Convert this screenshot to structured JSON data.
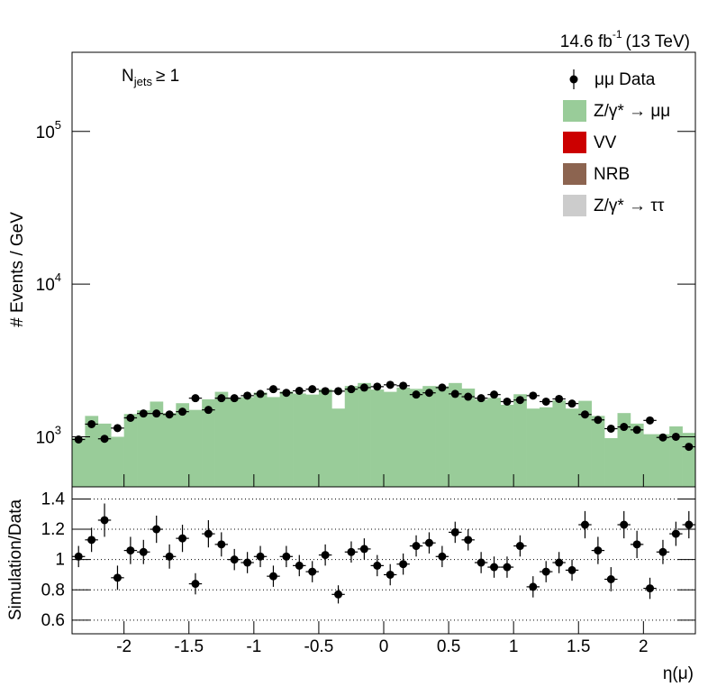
{
  "chart_data": [
    {
      "type": "histogram",
      "y_label": "# Events / GeV",
      "lumi": {
        "text": "14.6 fb",
        "sup": "-1",
        "rest": "(13 TeV)"
      },
      "annotation": {
        "text": "N",
        "sub": "jets",
        "rest": "≥ 1"
      },
      "log_y": true,
      "legend_position": "top-right",
      "bins": [
        -2.4,
        -2.3,
        -2.2,
        -2.1,
        -2.0,
        -1.9,
        -1.8,
        -1.7,
        -1.6,
        -1.5,
        -1.4,
        -1.3,
        -1.2,
        -1.1,
        -1.0,
        -0.9,
        -0.8,
        -0.7,
        -0.6,
        -0.5,
        -0.4,
        -0.3,
        -0.2,
        -0.1,
        0.0,
        0.1,
        0.2,
        0.3,
        0.4,
        0.5,
        0.6,
        0.7,
        0.8,
        0.9,
        1.0,
        1.1,
        1.2,
        1.3,
        1.4,
        1.5,
        1.6,
        1.7,
        1.8,
        1.9,
        2.0,
        2.1,
        2.2,
        2.3,
        2.4
      ],
      "xlim": [
        -2.4,
        2.4
      ],
      "ylim": [
        470,
        330000
      ],
      "yticks": [
        {
          "value": 1000,
          "label": "10",
          "exponent": "3"
        },
        {
          "value": 10000,
          "label": "10",
          "exponent": "4"
        },
        {
          "value": 100000,
          "label": "10",
          "exponent": "5"
        }
      ],
      "data": {
        "name": "μμ Data",
        "color": "#000000",
        "values": [
          960,
          1210,
          970,
          1140,
          1330,
          1420,
          1420,
          1400,
          1460,
          1790,
          1500,
          1790,
          1790,
          1860,
          1910,
          2050,
          1940,
          2000,
          2050,
          1990,
          1990,
          2050,
          2100,
          2130,
          2190,
          2160,
          1890,
          1940,
          2100,
          1910,
          1830,
          1790,
          1890,
          1700,
          1740,
          1860,
          1700,
          1770,
          1650,
          1400,
          1290,
          1130,
          1160,
          1110,
          1280,
          990,
          1000,
          860
        ]
      },
      "series": [
        {
          "name": "Z/γ* → μμ",
          "color": "#99cc99",
          "values": [
            980,
            1370,
            1220,
            1000,
            1410,
            1490,
            1700,
            1430,
            1660,
            1500,
            1760,
            1970,
            1790,
            1820,
            1950,
            1820,
            1980,
            1920,
            1890,
            2050,
            1530,
            2150,
            2250,
            2040,
            1970,
            2100,
            2060,
            2150,
            2140,
            2250,
            2070,
            1750,
            1800,
            1620,
            1900,
            1530,
            1560,
            1730,
            1530,
            1720,
            1370,
            980,
            1430,
            1220,
            1040,
            1040,
            1170,
            1060
          ]
        },
        {
          "name": "VV",
          "color": "#cc0000"
        },
        {
          "name": "NRB",
          "color": "#8c6450"
        },
        {
          "name": "Z/γ* → ττ",
          "color": "#cccccc"
        }
      ]
    },
    {
      "type": "scatter",
      "y_label": "Simulation/Data",
      "x_label": "η(μ)",
      "grid": true,
      "xlim": [
        -2.4,
        2.4
      ],
      "xticks": [
        -2,
        -1.5,
        -1,
        -0.5,
        0,
        0.5,
        1,
        1.5,
        2
      ],
      "ylim": [
        0.51,
        1.48
      ],
      "yticks": [
        0.6,
        0.8,
        1,
        1.2,
        1.4
      ],
      "x": [
        -2.35,
        -2.25,
        -2.15,
        -2.05,
        -1.95,
        -1.85,
        -1.75,
        -1.65,
        -1.55,
        -1.45,
        -1.35,
        -1.25,
        -1.15,
        -1.05,
        -0.95,
        -0.85,
        -0.75,
        -0.65,
        -0.55,
        -0.45,
        -0.35,
        -0.25,
        -0.15,
        -0.05,
        0.05,
        0.15,
        0.25,
        0.35,
        0.45,
        0.55,
        0.65,
        0.75,
        0.85,
        0.95,
        1.05,
        1.15,
        1.25,
        1.35,
        1.45,
        1.55,
        1.65,
        1.75,
        1.85,
        1.95,
        2.05,
        2.15,
        2.25,
        2.35
      ],
      "values": [
        1.02,
        1.13,
        1.26,
        0.88,
        1.06,
        1.05,
        1.2,
        1.02,
        1.14,
        0.84,
        1.17,
        1.1,
        1.0,
        0.98,
        1.02,
        0.89,
        1.02,
        0.96,
        0.92,
        1.03,
        0.77,
        1.05,
        1.07,
        0.96,
        0.9,
        0.97,
        1.09,
        1.11,
        1.02,
        1.18,
        1.13,
        0.98,
        0.95,
        0.95,
        1.09,
        0.82,
        0.92,
        0.98,
        0.93,
        1.23,
        1.06,
        0.87,
        1.23,
        1.1,
        0.81,
        1.05,
        1.17,
        1.23
      ],
      "errors": [
        0.07,
        0.08,
        0.11,
        0.08,
        0.09,
        0.08,
        0.09,
        0.08,
        0.09,
        0.07,
        0.09,
        0.08,
        0.07,
        0.07,
        0.07,
        0.07,
        0.07,
        0.07,
        0.07,
        0.07,
        0.06,
        0.07,
        0.07,
        0.07,
        0.07,
        0.07,
        0.07,
        0.07,
        0.07,
        0.07,
        0.07,
        0.07,
        0.07,
        0.07,
        0.07,
        0.07,
        0.07,
        0.07,
        0.07,
        0.09,
        0.09,
        0.08,
        0.09,
        0.09,
        0.07,
        0.08,
        0.08,
        0.09
      ]
    }
  ]
}
